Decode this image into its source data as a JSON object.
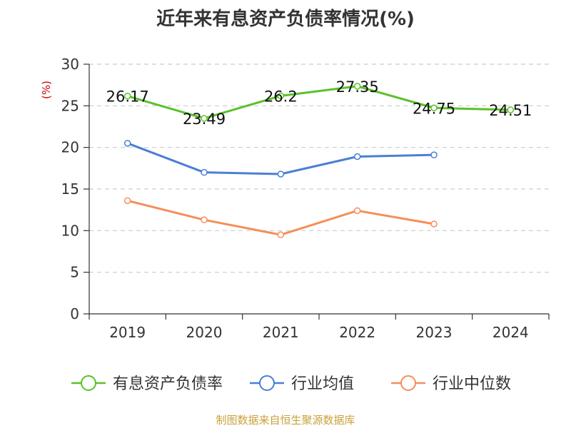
{
  "title": "近年来有息资产负债率情况(%)",
  "source": "制图数据来自恒生聚源数据库",
  "colors": {
    "source": "#c8a23c",
    "unit": "#cc0000",
    "axis": "#333333",
    "grid": "#cccccc"
  },
  "chart_data": {
    "type": "line",
    "title": "近年来有息资产负债率情况(%)",
    "ylabel": "(%)",
    "xlabel": "",
    "ylim": [
      0,
      30
    ],
    "yticks": [
      0,
      5,
      10,
      15,
      20,
      25,
      30
    ],
    "categories": [
      "2019",
      "2020",
      "2021",
      "2022",
      "2023",
      "2024"
    ],
    "grid": true,
    "legend": "bottom",
    "series": [
      {
        "name": "有息资产负债率",
        "color": "#5ac229",
        "values": [
          26.17,
          23.49,
          26.2,
          27.35,
          24.75,
          24.51
        ],
        "labels": [
          "26.17",
          "23.49",
          "26.2",
          "27.35",
          "24.75",
          "24.51"
        ]
      },
      {
        "name": "行业均值",
        "color": "#4a7fd4",
        "values": [
          20.5,
          17.0,
          16.8,
          18.9,
          19.1,
          null
        ]
      },
      {
        "name": "行业中位数",
        "color": "#f58e59",
        "values": [
          13.6,
          11.3,
          9.5,
          12.4,
          10.8,
          null
        ]
      }
    ]
  }
}
